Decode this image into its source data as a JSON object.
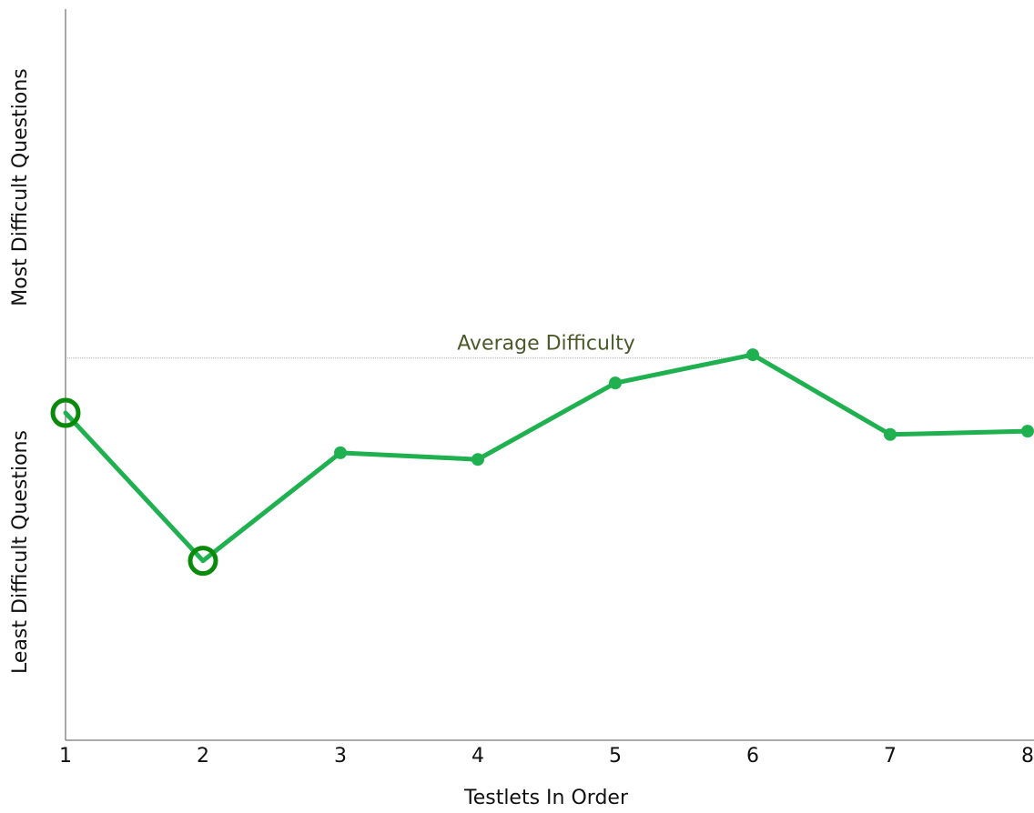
{
  "chart_data": {
    "type": "line",
    "x": [
      1,
      2,
      3,
      4,
      5,
      6,
      7,
      8
    ],
    "values": [
      -0.33,
      -1.22,
      -0.57,
      -0.61,
      -0.15,
      0.02,
      -0.46,
      -0.44
    ],
    "xlabel": "Testlets In Order",
    "ylabel_upper": "Most Difficult Questions",
    "ylabel_lower": "Least Difficult Questions",
    "xlim": [
      1,
      8
    ],
    "ylim": [
      -2.3,
      2.1
    ],
    "reference_line": {
      "label": "Average Difficulty",
      "value": 0
    },
    "highlighted_points": [
      1,
      2
    ],
    "grid": false,
    "colors": {
      "line": "#1fb04f",
      "highlight_ring": "#0a8a0a",
      "reference_line": "#b0b0b0",
      "reference_label": "#4a5a2a",
      "axis": "#555555"
    }
  }
}
